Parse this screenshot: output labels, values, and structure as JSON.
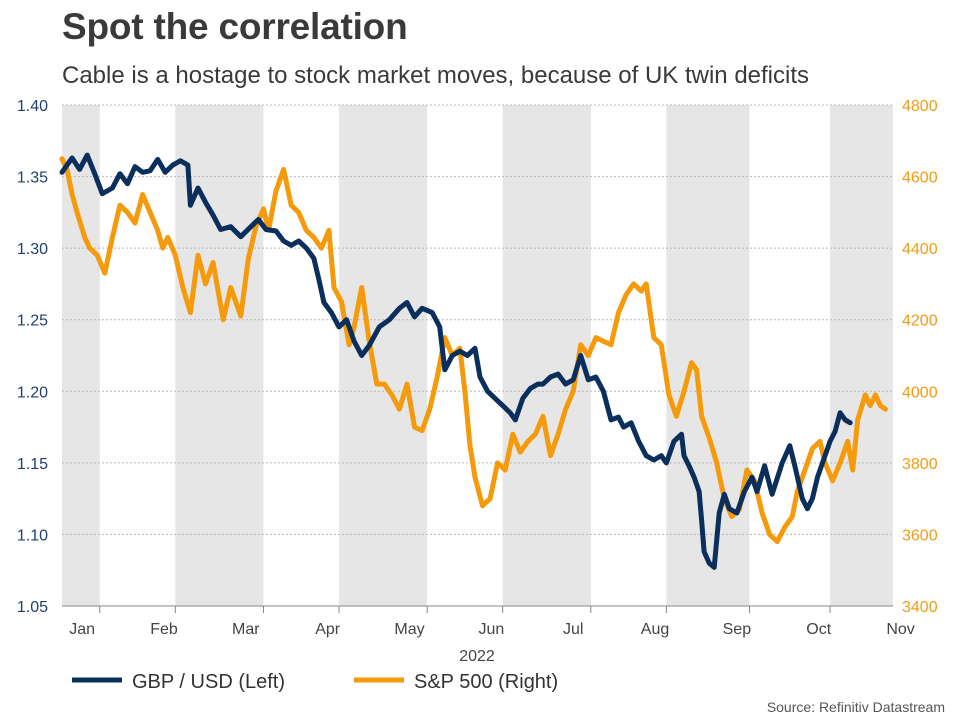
{
  "title": "Spot the correlation",
  "subtitle": "Cable is a hostage to stock market moves, because of UK twin deficits",
  "chart_data": {
    "type": "line",
    "xlabel": "2022",
    "months": [
      "Jan",
      "Feb",
      "Mar",
      "Apr",
      "May",
      "Jun",
      "Jul",
      "Aug",
      "Sep",
      "Oct",
      "Nov"
    ],
    "y_left": {
      "min": 1.05,
      "max": 1.4,
      "step": 0.05,
      "ticks": [
        "1.05",
        "1.10",
        "1.15",
        "1.20",
        "1.25",
        "1.30",
        "1.35",
        "1.40"
      ]
    },
    "y_right": {
      "min": 3400,
      "max": 4800,
      "step": 200,
      "ticks": [
        "3400",
        "3600",
        "3800",
        "4000",
        "4200",
        "4400",
        "4600",
        "4800"
      ]
    },
    "grid": true,
    "colors": {
      "gbp": "#0b2f5c",
      "spx": "#f59a0a",
      "band": "#e6e6e6",
      "grid": "#b9b9b9"
    },
    "series": [
      {
        "name": "GBP / USD (Left)",
        "axis": "left",
        "points": [
          [
            0,
            1.353
          ],
          [
            0.1,
            1.358
          ],
          [
            0.2,
            1.363
          ],
          [
            0.35,
            1.355
          ],
          [
            0.5,
            1.365
          ],
          [
            0.65,
            1.352
          ],
          [
            0.8,
            1.338
          ],
          [
            1.0,
            1.342
          ],
          [
            1.15,
            1.352
          ],
          [
            1.3,
            1.345
          ],
          [
            1.45,
            1.357
          ],
          [
            1.6,
            1.353
          ],
          [
            1.75,
            1.354
          ],
          [
            1.9,
            1.362
          ],
          [
            2.05,
            1.353
          ],
          [
            2.2,
            1.358
          ],
          [
            2.35,
            1.361
          ],
          [
            2.5,
            1.358
          ],
          [
            2.55,
            1.33
          ],
          [
            2.7,
            1.342
          ],
          [
            2.85,
            1.332
          ],
          [
            3.0,
            1.323
          ],
          [
            3.15,
            1.313
          ],
          [
            3.35,
            1.315
          ],
          [
            3.55,
            1.308
          ],
          [
            3.75,
            1.315
          ],
          [
            3.9,
            1.32
          ],
          [
            4.05,
            1.313
          ],
          [
            4.25,
            1.312
          ],
          [
            4.4,
            1.305
          ],
          [
            4.55,
            1.302
          ],
          [
            4.7,
            1.305
          ],
          [
            4.85,
            1.3
          ],
          [
            5.0,
            1.293
          ],
          [
            5.1,
            1.278
          ],
          [
            5.2,
            1.262
          ],
          [
            5.35,
            1.255
          ],
          [
            5.5,
            1.245
          ],
          [
            5.65,
            1.25
          ],
          [
            5.8,
            1.235
          ],
          [
            5.95,
            1.225
          ],
          [
            6.1,
            1.232
          ],
          [
            6.3,
            1.245
          ],
          [
            6.5,
            1.25
          ],
          [
            6.7,
            1.258
          ],
          [
            6.85,
            1.262
          ],
          [
            7.0,
            1.252
          ],
          [
            7.15,
            1.258
          ],
          [
            7.35,
            1.255
          ],
          [
            7.5,
            1.245
          ],
          [
            7.6,
            1.215
          ],
          [
            7.75,
            1.225
          ],
          [
            7.9,
            1.228
          ],
          [
            8.05,
            1.225
          ],
          [
            8.2,
            1.23
          ],
          [
            8.3,
            1.21
          ],
          [
            8.45,
            1.2
          ],
          [
            8.6,
            1.195
          ],
          [
            8.75,
            1.19
          ],
          [
            8.9,
            1.185
          ],
          [
            9.0,
            1.18
          ],
          [
            9.15,
            1.195
          ],
          [
            9.3,
            1.202
          ],
          [
            9.45,
            1.205
          ],
          [
            9.55,
            1.205
          ],
          [
            9.7,
            1.21
          ],
          [
            9.85,
            1.212
          ],
          [
            10.0,
            1.205
          ],
          [
            10.15,
            1.208
          ],
          [
            10.3,
            1.225
          ],
          [
            10.45,
            1.208
          ],
          [
            10.6,
            1.21
          ],
          [
            10.75,
            1.2
          ],
          [
            10.9,
            1.18
          ],
          [
            11.05,
            1.182
          ],
          [
            11.15,
            1.175
          ],
          [
            11.3,
            1.178
          ],
          [
            11.45,
            1.165
          ],
          [
            11.6,
            1.155
          ],
          [
            11.75,
            1.152
          ],
          [
            11.9,
            1.155
          ],
          [
            12.0,
            1.15
          ],
          [
            12.15,
            1.165
          ],
          [
            12.3,
            1.17
          ],
          [
            12.35,
            1.155
          ],
          [
            12.45,
            1.148
          ],
          [
            12.55,
            1.14
          ],
          [
            12.65,
            1.13
          ],
          [
            12.7,
            1.11
          ],
          [
            12.75,
            1.088
          ],
          [
            12.85,
            1.08
          ],
          [
            12.95,
            1.077
          ],
          [
            13.05,
            1.115
          ],
          [
            13.15,
            1.128
          ],
          [
            13.25,
            1.118
          ],
          [
            13.4,
            1.115
          ],
          [
            13.55,
            1.13
          ],
          [
            13.7,
            1.14
          ],
          [
            13.8,
            1.13
          ],
          [
            13.95,
            1.148
          ],
          [
            14.1,
            1.128
          ],
          [
            14.3,
            1.15
          ],
          [
            14.45,
            1.162
          ],
          [
            14.55,
            1.148
          ],
          [
            14.7,
            1.125
          ],
          [
            14.8,
            1.118
          ],
          [
            14.9,
            1.125
          ],
          [
            15.0,
            1.14
          ],
          [
            15.1,
            1.15
          ],
          [
            15.25,
            1.165
          ],
          [
            15.35,
            1.172
          ],
          [
            15.45,
            1.185
          ],
          [
            15.55,
            1.18
          ],
          [
            15.65,
            1.178
          ]
        ]
      },
      {
        "name": "S&P 500 (Right)",
        "axis": "right",
        "points": [
          [
            0,
            4650
          ],
          [
            0.1,
            4620
          ],
          [
            0.2,
            4550
          ],
          [
            0.3,
            4500
          ],
          [
            0.45,
            4430
          ],
          [
            0.55,
            4400
          ],
          [
            0.7,
            4380
          ],
          [
            0.85,
            4330
          ],
          [
            1.0,
            4430
          ],
          [
            1.15,
            4520
          ],
          [
            1.3,
            4500
          ],
          [
            1.45,
            4470
          ],
          [
            1.6,
            4550
          ],
          [
            1.75,
            4500
          ],
          [
            1.9,
            4450
          ],
          [
            2.0,
            4400
          ],
          [
            2.1,
            4430
          ],
          [
            2.25,
            4380
          ],
          [
            2.4,
            4290
          ],
          [
            2.55,
            4220
          ],
          [
            2.7,
            4380
          ],
          [
            2.85,
            4300
          ],
          [
            3.0,
            4360
          ],
          [
            3.1,
            4280
          ],
          [
            3.2,
            4200
          ],
          [
            3.35,
            4290
          ],
          [
            3.55,
            4210
          ],
          [
            3.7,
            4370
          ],
          [
            3.85,
            4460
          ],
          [
            4.0,
            4510
          ],
          [
            4.1,
            4450
          ],
          [
            4.25,
            4560
          ],
          [
            4.4,
            4620
          ],
          [
            4.55,
            4520
          ],
          [
            4.7,
            4500
          ],
          [
            4.85,
            4450
          ],
          [
            5.0,
            4430
          ],
          [
            5.15,
            4400
          ],
          [
            5.3,
            4450
          ],
          [
            5.4,
            4290
          ],
          [
            5.55,
            4250
          ],
          [
            5.7,
            4130
          ],
          [
            5.8,
            4180
          ],
          [
            5.95,
            4290
          ],
          [
            6.1,
            4140
          ],
          [
            6.25,
            4020
          ],
          [
            6.4,
            4020
          ],
          [
            6.55,
            3990
          ],
          [
            6.7,
            3950
          ],
          [
            6.85,
            4020
          ],
          [
            7.0,
            3900
          ],
          [
            7.15,
            3890
          ],
          [
            7.3,
            3950
          ],
          [
            7.45,
            4040
          ],
          [
            7.6,
            4150
          ],
          [
            7.75,
            4100
          ],
          [
            7.9,
            4120
          ],
          [
            8.0,
            4000
          ],
          [
            8.1,
            3850
          ],
          [
            8.2,
            3760
          ],
          [
            8.35,
            3680
          ],
          [
            8.5,
            3700
          ],
          [
            8.65,
            3800
          ],
          [
            8.8,
            3780
          ],
          [
            8.95,
            3880
          ],
          [
            9.1,
            3830
          ],
          [
            9.25,
            3860
          ],
          [
            9.4,
            3880
          ],
          [
            9.55,
            3930
          ],
          [
            9.7,
            3820
          ],
          [
            9.85,
            3880
          ],
          [
            10.0,
            3950
          ],
          [
            10.15,
            4000
          ],
          [
            10.3,
            4130
          ],
          [
            10.45,
            4100
          ],
          [
            10.6,
            4150
          ],
          [
            10.75,
            4140
          ],
          [
            10.9,
            4130
          ],
          [
            11.05,
            4220
          ],
          [
            11.2,
            4270
          ],
          [
            11.35,
            4300
          ],
          [
            11.5,
            4280
          ],
          [
            11.6,
            4300
          ],
          [
            11.75,
            4150
          ],
          [
            11.9,
            4130
          ],
          [
            12.05,
            3990
          ],
          [
            12.2,
            3930
          ],
          [
            12.35,
            4000
          ],
          [
            12.5,
            4080
          ],
          [
            12.6,
            4060
          ],
          [
            12.7,
            3930
          ],
          [
            12.85,
            3870
          ],
          [
            13.0,
            3800
          ],
          [
            13.15,
            3700
          ],
          [
            13.3,
            3650
          ],
          [
            13.45,
            3670
          ],
          [
            13.6,
            3780
          ],
          [
            13.75,
            3750
          ],
          [
            13.9,
            3660
          ],
          [
            14.05,
            3600
          ],
          [
            14.2,
            3580
          ],
          [
            14.35,
            3620
          ],
          [
            14.5,
            3650
          ],
          [
            14.6,
            3720
          ],
          [
            14.75,
            3780
          ],
          [
            14.9,
            3840
          ],
          [
            15.05,
            3860
          ],
          [
            15.15,
            3800
          ],
          [
            15.3,
            3750
          ],
          [
            15.45,
            3800
          ],
          [
            15.6,
            3860
          ],
          [
            15.7,
            3780
          ],
          [
            15.8,
            3920
          ],
          [
            15.95,
            3990
          ],
          [
            16.05,
            3960
          ],
          [
            16.15,
            3990
          ],
          [
            16.25,
            3960
          ],
          [
            16.35,
            3950
          ]
        ]
      }
    ]
  },
  "source": "Source: Refinitiv Datastream"
}
